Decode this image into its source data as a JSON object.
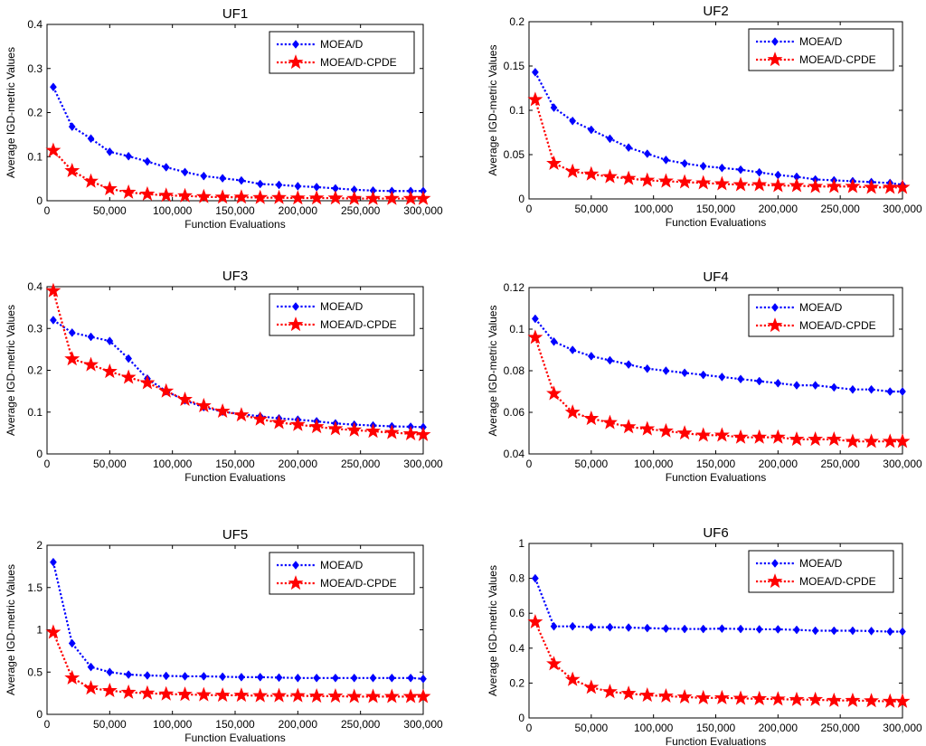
{
  "chart_data": [
    {
      "type": "line",
      "title": "UF1",
      "xlabel": "Function Evaluations",
      "ylabel": "Average IGD-metric Values",
      "xlim": [
        0,
        300000
      ],
      "ylim": [
        0,
        0.4
      ],
      "xticks": [
        0,
        50000,
        100000,
        150000,
        200000,
        250000,
        300000
      ],
      "xtick_labels": [
        "0",
        "50,000",
        "100,000",
        "150,000",
        "200,000",
        "250,000",
        "300,000"
      ],
      "yticks": [
        0,
        0.1,
        0.2,
        0.3,
        0.4
      ],
      "ytick_labels": [
        "0",
        "0.1",
        "0.2",
        "0.3",
        "0.4"
      ],
      "legend_position": "top-right",
      "x": [
        5000,
        20000,
        35000,
        50000,
        65000,
        80000,
        95000,
        110000,
        125000,
        140000,
        155000,
        170000,
        185000,
        200000,
        215000,
        230000,
        245000,
        260000,
        275000,
        290000,
        300000
      ],
      "series": [
        {
          "name": "MOEA/D",
          "color": "#0000ff",
          "marker": "diamond",
          "values": [
            0.258,
            0.168,
            0.141,
            0.111,
            0.101,
            0.089,
            0.076,
            0.065,
            0.056,
            0.051,
            0.046,
            0.038,
            0.036,
            0.033,
            0.031,
            0.028,
            0.025,
            0.023,
            0.022,
            0.022,
            0.022
          ]
        },
        {
          "name": "MOEA/D-CPDE",
          "color": "#ff0000",
          "marker": "star",
          "values": [
            0.114,
            0.068,
            0.044,
            0.027,
            0.019,
            0.015,
            0.012,
            0.011,
            0.009,
            0.008,
            0.008,
            0.007,
            0.007,
            0.006,
            0.006,
            0.006,
            0.005,
            0.005,
            0.005,
            0.005,
            0.005
          ]
        }
      ]
    },
    {
      "type": "line",
      "title": "UF2",
      "xlabel": "Function Evaluations",
      "ylabel": "Average IGD-metric Values",
      "xlim": [
        0,
        300000
      ],
      "ylim": [
        0,
        0.2
      ],
      "xticks": [
        0,
        50000,
        100000,
        150000,
        200000,
        250000,
        300000
      ],
      "xtick_labels": [
        "0",
        "50,000",
        "100,000",
        "150,000",
        "200,000",
        "250,000",
        "300,000"
      ],
      "yticks": [
        0,
        0.05,
        0.1,
        0.15,
        0.2
      ],
      "ytick_labels": [
        "0",
        "0.05",
        "0.1",
        "0.15",
        "0.2"
      ],
      "legend_position": "top-right",
      "x": [
        5000,
        20000,
        35000,
        50000,
        65000,
        80000,
        95000,
        110000,
        125000,
        140000,
        155000,
        170000,
        185000,
        200000,
        215000,
        230000,
        245000,
        260000,
        275000,
        290000,
        300000
      ],
      "series": [
        {
          "name": "MOEA/D",
          "color": "#0000ff",
          "marker": "diamond",
          "values": [
            0.143,
            0.103,
            0.088,
            0.078,
            0.068,
            0.058,
            0.051,
            0.044,
            0.04,
            0.037,
            0.035,
            0.033,
            0.03,
            0.027,
            0.025,
            0.022,
            0.021,
            0.02,
            0.019,
            0.018,
            0.016
          ]
        },
        {
          "name": "MOEA/D-CPDE",
          "color": "#ff0000",
          "marker": "star",
          "values": [
            0.112,
            0.04,
            0.031,
            0.028,
            0.025,
            0.023,
            0.021,
            0.02,
            0.019,
            0.018,
            0.017,
            0.016,
            0.016,
            0.015,
            0.015,
            0.014,
            0.014,
            0.014,
            0.013,
            0.013,
            0.013
          ]
        }
      ]
    },
    {
      "type": "line",
      "title": "UF3",
      "xlabel": "Function Evaluations",
      "ylabel": "Average IGD-metric Values",
      "xlim": [
        0,
        300000
      ],
      "ylim": [
        0,
        0.4
      ],
      "xticks": [
        0,
        50000,
        100000,
        150000,
        200000,
        250000,
        300000
      ],
      "xtick_labels": [
        "0",
        "50,000",
        "100,000",
        "150,000",
        "200,000",
        "250,000",
        "300,000"
      ],
      "yticks": [
        0,
        0.1,
        0.2,
        0.3,
        0.4
      ],
      "ytick_labels": [
        "0",
        "0.1",
        "0.2",
        "0.3",
        "0.4"
      ],
      "legend_position": "top-right",
      "x": [
        5000,
        20000,
        35000,
        50000,
        65000,
        80000,
        95000,
        110000,
        125000,
        140000,
        155000,
        170000,
        185000,
        200000,
        215000,
        230000,
        245000,
        260000,
        275000,
        290000,
        300000
      ],
      "series": [
        {
          "name": "MOEA/D",
          "color": "#0000ff",
          "marker": "diamond",
          "values": [
            0.32,
            0.29,
            0.28,
            0.27,
            0.228,
            0.18,
            0.15,
            0.128,
            0.112,
            0.101,
            0.095,
            0.09,
            0.085,
            0.082,
            0.078,
            0.073,
            0.07,
            0.068,
            0.066,
            0.065,
            0.064
          ]
        },
        {
          "name": "MOEA/D-CPDE",
          "color": "#ff0000",
          "marker": "star",
          "values": [
            0.39,
            0.227,
            0.213,
            0.197,
            0.183,
            0.17,
            0.15,
            0.13,
            0.115,
            0.102,
            0.093,
            0.083,
            0.075,
            0.07,
            0.065,
            0.06,
            0.057,
            0.054,
            0.051,
            0.048,
            0.046
          ]
        }
      ]
    },
    {
      "type": "line",
      "title": "UF4",
      "xlabel": "Function Evaluations",
      "ylabel": "Average IGD-metric Values",
      "xlim": [
        0,
        300000
      ],
      "ylim": [
        0.04,
        0.12
      ],
      "xticks": [
        0,
        50000,
        100000,
        150000,
        200000,
        250000,
        300000
      ],
      "xtick_labels": [
        "0",
        "50,000",
        "100,000",
        "150,000",
        "200,000",
        "250,000",
        "300,000"
      ],
      "yticks": [
        0.04,
        0.06,
        0.08,
        0.1,
        0.12
      ],
      "ytick_labels": [
        "0.04",
        "0.06",
        "0.08",
        "0.1",
        "0.12"
      ],
      "legend_position": "top-right",
      "x": [
        5000,
        20000,
        35000,
        50000,
        65000,
        80000,
        95000,
        110000,
        125000,
        140000,
        155000,
        170000,
        185000,
        200000,
        215000,
        230000,
        245000,
        260000,
        275000,
        290000,
        300000
      ],
      "series": [
        {
          "name": "MOEA/D",
          "color": "#0000ff",
          "marker": "diamond",
          "values": [
            0.105,
            0.094,
            0.09,
            0.087,
            0.085,
            0.083,
            0.081,
            0.08,
            0.079,
            0.078,
            0.077,
            0.076,
            0.075,
            0.074,
            0.073,
            0.073,
            0.072,
            0.071,
            0.071,
            0.07,
            0.07
          ]
        },
        {
          "name": "MOEA/D-CPDE",
          "color": "#ff0000",
          "marker": "star",
          "values": [
            0.096,
            0.069,
            0.06,
            0.057,
            0.055,
            0.053,
            0.052,
            0.051,
            0.05,
            0.049,
            0.049,
            0.048,
            0.048,
            0.048,
            0.047,
            0.047,
            0.047,
            0.046,
            0.046,
            0.046,
            0.046
          ]
        }
      ]
    },
    {
      "type": "line",
      "title": "UF5",
      "xlabel": "Function Evaluations",
      "ylabel": "Average IGD-metric Values",
      "xlim": [
        0,
        300000
      ],
      "ylim": [
        0,
        2
      ],
      "xticks": [
        0,
        50000,
        100000,
        150000,
        200000,
        250000,
        300000
      ],
      "xtick_labels": [
        "0",
        "50,000",
        "100,000",
        "150,000",
        "200,000",
        "250,000",
        "300,000"
      ],
      "yticks": [
        0,
        0.5,
        1,
        1.5,
        2
      ],
      "ytick_labels": [
        "0",
        "0.5",
        "1",
        "1.5",
        "2"
      ],
      "legend_position": "top-right",
      "x": [
        5000,
        20000,
        35000,
        50000,
        65000,
        80000,
        95000,
        110000,
        125000,
        140000,
        155000,
        170000,
        185000,
        200000,
        215000,
        230000,
        245000,
        260000,
        275000,
        290000,
        300000
      ],
      "series": [
        {
          "name": "MOEA/D",
          "color": "#0000ff",
          "marker": "diamond",
          "values": [
            1.8,
            0.84,
            0.56,
            0.5,
            0.47,
            0.46,
            0.455,
            0.45,
            0.45,
            0.445,
            0.44,
            0.44,
            0.435,
            0.43,
            0.43,
            0.43,
            0.43,
            0.43,
            0.43,
            0.43,
            0.42
          ]
        },
        {
          "name": "MOEA/D-CPDE",
          "color": "#ff0000",
          "marker": "star",
          "values": [
            0.97,
            0.43,
            0.31,
            0.28,
            0.26,
            0.25,
            0.24,
            0.235,
            0.23,
            0.225,
            0.225,
            0.22,
            0.22,
            0.22,
            0.215,
            0.215,
            0.21,
            0.21,
            0.21,
            0.21,
            0.21
          ]
        }
      ]
    },
    {
      "type": "line",
      "title": "UF6",
      "xlabel": "Function Evaluations",
      "ylabel": "Average IGD-metric Values",
      "xlim": [
        0,
        300000
      ],
      "ylim": [
        0,
        1
      ],
      "xticks": [
        0,
        50000,
        100000,
        150000,
        200000,
        250000,
        300000
      ],
      "xtick_labels": [
        "0",
        "50,000",
        "100,000",
        "150,000",
        "200,000",
        "250,000",
        "300,000"
      ],
      "yticks": [
        0,
        0.2,
        0.4,
        0.6,
        0.8,
        1
      ],
      "ytick_labels": [
        "0",
        "0.2",
        "0.4",
        "0.6",
        "0.8",
        "1"
      ],
      "legend_position": "top-right",
      "x": [
        5000,
        20000,
        35000,
        50000,
        65000,
        80000,
        95000,
        110000,
        125000,
        140000,
        155000,
        170000,
        185000,
        200000,
        215000,
        230000,
        245000,
        260000,
        275000,
        290000,
        300000
      ],
      "series": [
        {
          "name": "MOEA/D",
          "color": "#0000ff",
          "marker": "diamond",
          "values": [
            0.8,
            0.525,
            0.525,
            0.52,
            0.52,
            0.518,
            0.515,
            0.512,
            0.51,
            0.51,
            0.512,
            0.51,
            0.508,
            0.508,
            0.505,
            0.5,
            0.5,
            0.5,
            0.498,
            0.495,
            0.495
          ]
        },
        {
          "name": "MOEA/D-CPDE",
          "color": "#ff0000",
          "marker": "star",
          "values": [
            0.55,
            0.31,
            0.22,
            0.175,
            0.15,
            0.14,
            0.13,
            0.125,
            0.12,
            0.115,
            0.115,
            0.112,
            0.11,
            0.108,
            0.105,
            0.105,
            0.1,
            0.1,
            0.098,
            0.095,
            0.095
          ]
        }
      ]
    }
  ]
}
